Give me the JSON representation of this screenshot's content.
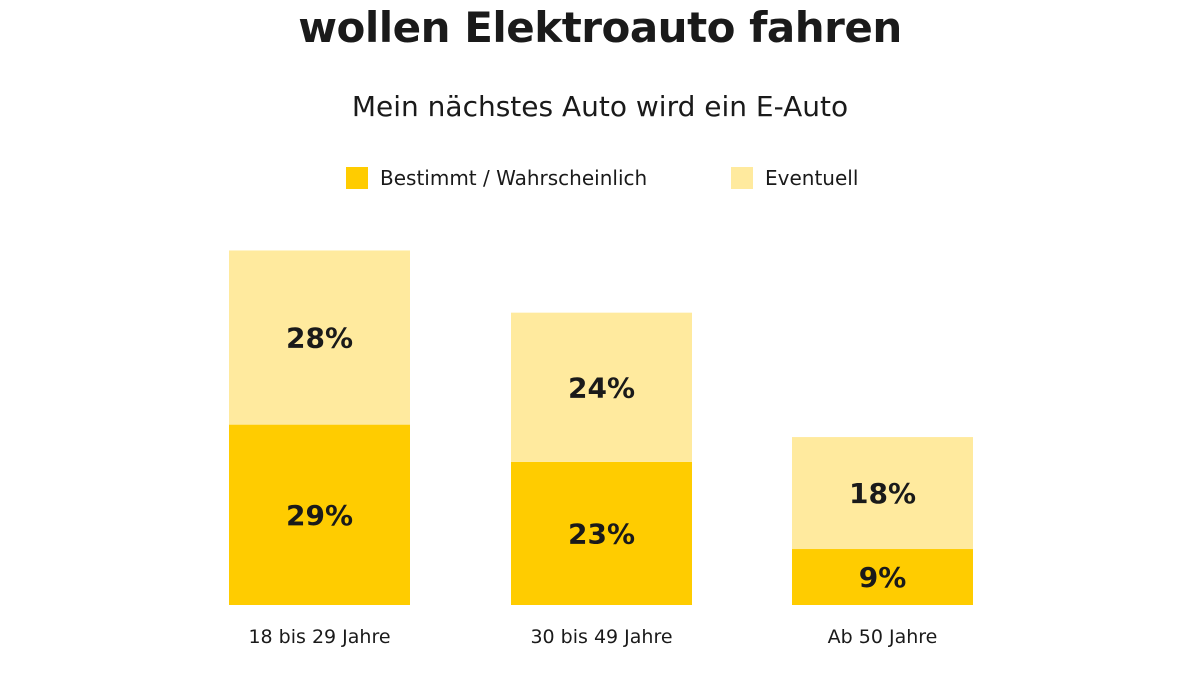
{
  "chart_data": {
    "type": "bar",
    "stacked": true,
    "title": "wollen Elektroauto fahren",
    "subtitle": "Mein nächstes Auto wird ein E-Auto",
    "categories": [
      "18 bis 29 Jahre",
      "30 bis 49 Jahre",
      "Ab 50 Jahre"
    ],
    "series": [
      {
        "name": "Bestimmt / Wahrscheinlich",
        "values": [
          29,
          23,
          9
        ],
        "labels": [
          "29%",
          "23%",
          "9%"
        ],
        "color": "#FFCC00"
      },
      {
        "name": "Eventuell",
        "values": [
          28,
          24,
          18
        ],
        "labels": [
          "28%",
          "24%",
          "18%"
        ],
        "color": "#FFEA9E"
      }
    ],
    "legend": "top-center",
    "grid": false,
    "unit": "%"
  }
}
